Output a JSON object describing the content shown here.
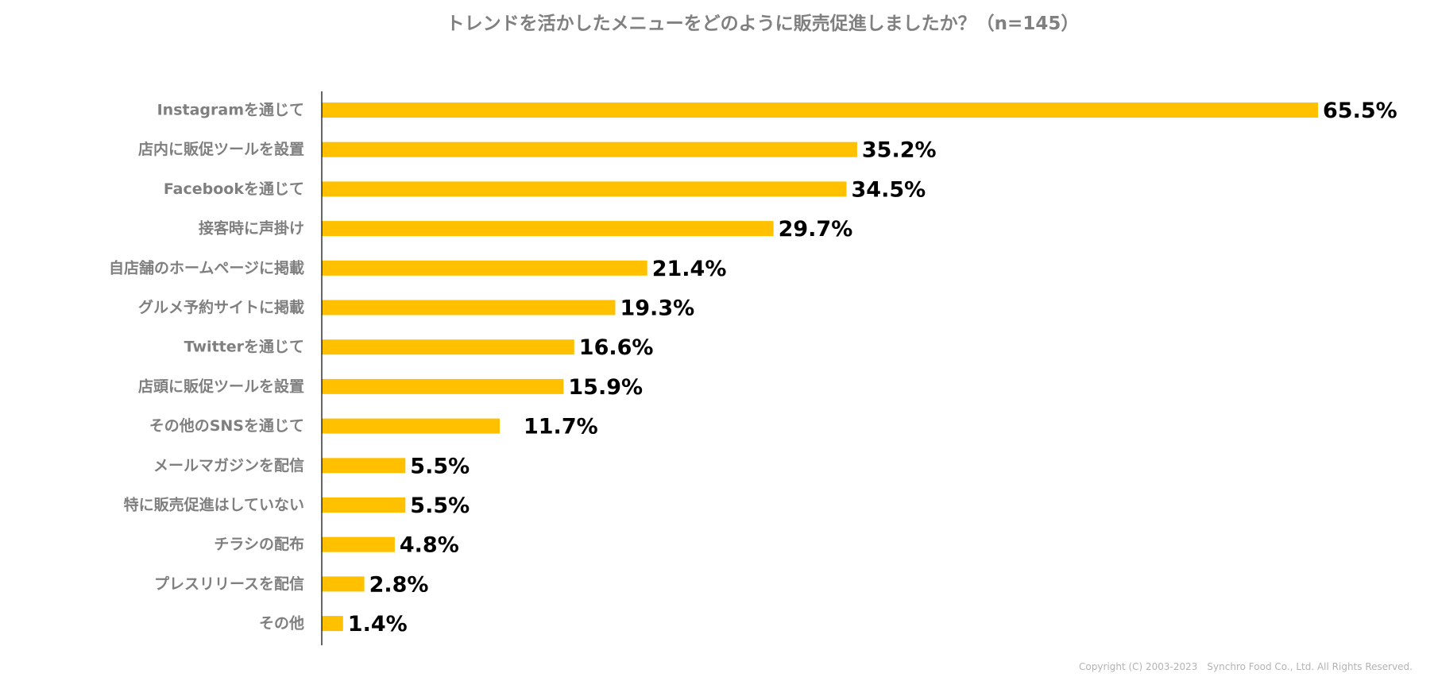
{
  "chart_data": {
    "type": "bar",
    "orientation": "horizontal",
    "title": "トレンドを活かしたメニューをどのように販売促進しましたか？（n=145）",
    "categories": [
      "Instagramを通じて",
      "店内に販促ツールを設置",
      "Facebookを通じて",
      "接客時に声掛け",
      "自店舗のホームページに掲載",
      "グルメ予約サイトに掲載",
      "Twitterを通じて",
      "店頭に販促ツールを設置",
      "その他のSNSを通じて",
      "メールマガジンを配信",
      "特に販売促進はしていない",
      "チラシの配布",
      "プレスリリースを配信",
      "その他"
    ],
    "values": [
      65.5,
      35.2,
      34.5,
      29.7,
      21.4,
      19.3,
      16.6,
      15.9,
      11.7,
      5.5,
      5.5,
      4.8,
      2.8,
      1.4
    ],
    "value_labels": [
      "65.5%",
      "35.2%",
      "34.5%",
      "29.7%",
      "21.4%",
      "19.3%",
      "16.6%",
      "15.9%",
      "11.7%",
      "5.5%",
      "5.5%",
      "4.8%",
      "2.8%",
      "1.4%"
    ],
    "xlim": [
      0,
      70
    ],
    "unit": "%",
    "bar_color": "#ffc000",
    "grid": false,
    "legend": "none"
  },
  "footer": {
    "copyright": "Copyright (C) 2003-2023　Synchro Food Co., Ltd. All Rights Reserved."
  },
  "colors": {
    "bar": "#ffc000",
    "category_text": "#7f7f7f",
    "value_text": "#000000",
    "title_text": "#808080",
    "axis": "#000000"
  }
}
